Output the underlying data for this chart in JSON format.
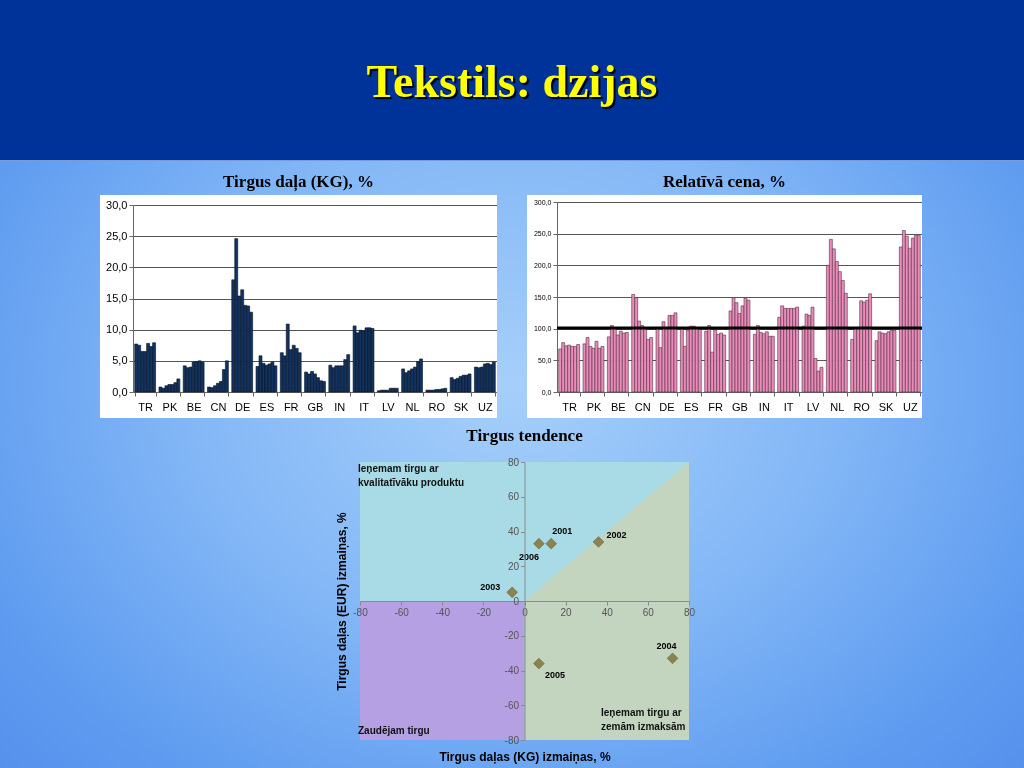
{
  "chart_data": [
    {
      "type": "other",
      "title": "Tekstils: dzijas"
    },
    {
      "type": "bar",
      "title": "Tirgus daļa (KG), %",
      "categories": [
        "TR",
        "PK",
        "BE",
        "CN",
        "DE",
        "ES",
        "FR",
        "GB",
        "IN",
        "IT",
        "LV",
        "NL",
        "RO",
        "SK",
        "UZ"
      ],
      "series": [
        {
          "color": "#12325f",
          "values": [
            7.7,
            0.8,
            4.2,
            0.8,
            18.0,
            4.1,
            6.3,
            3.2,
            4.3,
            10.6,
            0.2,
            3.7,
            0.3,
            2.3,
            4.0
          ]
        },
        {
          "color": "#12325f",
          "values": [
            7.5,
            0.6,
            3.9,
            0.7,
            24.6,
            5.8,
            5.8,
            2.9,
            3.9,
            9.5,
            0.3,
            3.1,
            0.3,
            2.0,
            3.9
          ]
        },
        {
          "color": "#12325f",
          "values": [
            6.5,
            1.0,
            4.0,
            1.0,
            15.4,
            4.6,
            10.9,
            3.3,
            4.2,
            9.9,
            0.3,
            3.4,
            0.3,
            2.2,
            4.0
          ]
        },
        {
          "color": "#12325f",
          "values": [
            6.5,
            1.2,
            4.8,
            1.4,
            16.4,
            4.3,
            6.8,
            2.9,
            4.2,
            9.8,
            0.3,
            3.7,
            0.4,
            2.5,
            4.5
          ]
        },
        {
          "color": "#12325f",
          "values": [
            7.8,
            1.2,
            4.9,
            1.7,
            13.9,
            4.5,
            7.5,
            2.3,
            4.2,
            10.3,
            0.6,
            4.0,
            0.4,
            2.7,
            4.6
          ]
        },
        {
          "color": "#12325f",
          "values": [
            7.3,
            1.5,
            5.0,
            3.6,
            13.8,
            4.8,
            7.0,
            1.8,
            5.2,
            10.3,
            0.6,
            4.9,
            0.5,
            2.7,
            4.4
          ]
        },
        {
          "color": "#12325f",
          "values": [
            7.9,
            2.1,
            4.8,
            5.0,
            12.8,
            4.2,
            6.3,
            1.7,
            6.0,
            10.2,
            0.6,
            5.3,
            0.6,
            2.9,
            4.8
          ]
        }
      ],
      "ylim": [
        0,
        30
      ],
      "yticks": [
        {
          "value": 0,
          "label": "0,0"
        },
        {
          "value": 5,
          "label": "5,0"
        },
        {
          "value": 10,
          "label": "10,0"
        },
        {
          "value": 15,
          "label": "15,0"
        },
        {
          "value": 20,
          "label": "20,0"
        },
        {
          "value": 25,
          "label": "25,0"
        },
        {
          "value": 30,
          "label": "30,0"
        }
      ],
      "grid": "y"
    },
    {
      "type": "bar",
      "title": "Relatīvā cena, %",
      "categories": [
        "TR",
        "PK",
        "BE",
        "CN",
        "DE",
        "ES",
        "FR",
        "GB",
        "IN",
        "IT",
        "LV",
        "NL",
        "RO",
        "SK",
        "UZ"
      ],
      "series": [
        {
          "color": "#ea8cba",
          "values": [
            68,
            76,
            87,
            154,
            100,
            100,
            96,
            128,
            91,
            118,
            104,
            200,
            83,
            81,
            229
          ]
        },
        {
          "color": "#ea8cba",
          "values": [
            78,
            86,
            105,
            149,
            70,
            72,
            105,
            149,
            105,
            136,
            123,
            241,
            101,
            95,
            255
          ]
        },
        {
          "color": "#ea8cba",
          "values": [
            73,
            72,
            100,
            112,
            111,
            98,
            63,
            141,
            94,
            132,
            121,
            226,
            101,
            93,
            246
          ]
        },
        {
          "color": "#ea8cba",
          "values": [
            74,
            69,
            90,
            105,
            100,
            104,
            98,
            124,
            92,
            132,
            134,
            206,
            144,
            92,
            227
          ]
        },
        {
          "color": "#ea8cba",
          "values": [
            72,
            80,
            96,
            100,
            121,
            104,
            91,
            136,
            95,
            132,
            53,
            190,
            142,
            95,
            243
          ]
        },
        {
          "color": "#ea8cba",
          "values": [
            72,
            69,
            93,
            83,
            121,
            100,
            93,
            148,
            88,
            132,
            33,
            176,
            145,
            97,
            247
          ]
        },
        {
          "color": "#ea8cba",
          "values": [
            75,
            72,
            94,
            86,
            125,
            99,
            90,
            145,
            88,
            134,
            39,
            156,
            155,
            97,
            247
          ]
        }
      ],
      "ylim": [
        0,
        300
      ],
      "yticks": [
        {
          "value": 0,
          "label": "0,0"
        },
        {
          "value": 50,
          "label": "50,0"
        },
        {
          "value": 100,
          "label": "100,0"
        },
        {
          "value": 150,
          "label": "150,0"
        },
        {
          "value": 200,
          "label": "200,0"
        },
        {
          "value": 250,
          "label": "250,0"
        },
        {
          "value": 300,
          "label": "300,0"
        }
      ],
      "grid": "y",
      "ref_lines": [
        {
          "axis": "y",
          "value": 101,
          "color": "#000000"
        }
      ]
    },
    {
      "type": "scatter",
      "title": "Tirgus tendence",
      "xlabel": "Tirgus daļas (KG) izmaiņas, %",
      "ylabel": "Tirgus daļas (EUR) izmaiņas, %",
      "xlim": [
        -80,
        80
      ],
      "ylim": [
        -80,
        80
      ],
      "xticks": [
        -80,
        -60,
        -40,
        -20,
        0,
        20,
        40,
        60,
        80
      ],
      "yticks": [
        -80,
        -60,
        -40,
        -20,
        0,
        20,
        40,
        60,
        80
      ],
      "bands": [
        {
          "axis": "x",
          "from": -80,
          "to": 0,
          "color": "#b4a0e2"
        },
        {
          "axis": "x",
          "from": 0,
          "to": 80,
          "color": "#c3d4bf"
        },
        {
          "axis": "y",
          "from": 0,
          "to": 80,
          "color": "#a8dbe6"
        }
      ],
      "series": [
        {
          "type": "area",
          "x": [
            0,
            80
          ],
          "values": [
            0,
            80
          ],
          "color": "#c3d4bf"
        },
        {
          "type": "scatter",
          "marker": "diamond",
          "x": [
            13,
            36,
            -6,
            72,
            7,
            7
          ],
          "values": [
            33,
            34,
            5,
            -33,
            -36,
            33
          ],
          "color": "#8c8450"
        }
      ],
      "annotations": [
        {
          "text": "2001",
          "x": 13,
          "y": 33
        },
        {
          "text": "2002",
          "x": 36,
          "y": 34
        },
        {
          "text": "2003",
          "x": -6,
          "y": 5
        },
        {
          "text": "2004",
          "x": 72,
          "y": -33
        },
        {
          "text": "2005",
          "x": 7,
          "y": -36
        },
        {
          "text": "2006",
          "x": 7,
          "y": 33
        },
        "Ieņemam tirgu ar\nkvalitatīvāku produktu",
        "Ieņemam tirgu ar\nzemām izmaksām",
        "Zaudējam tirgu"
      ]
    }
  ]
}
